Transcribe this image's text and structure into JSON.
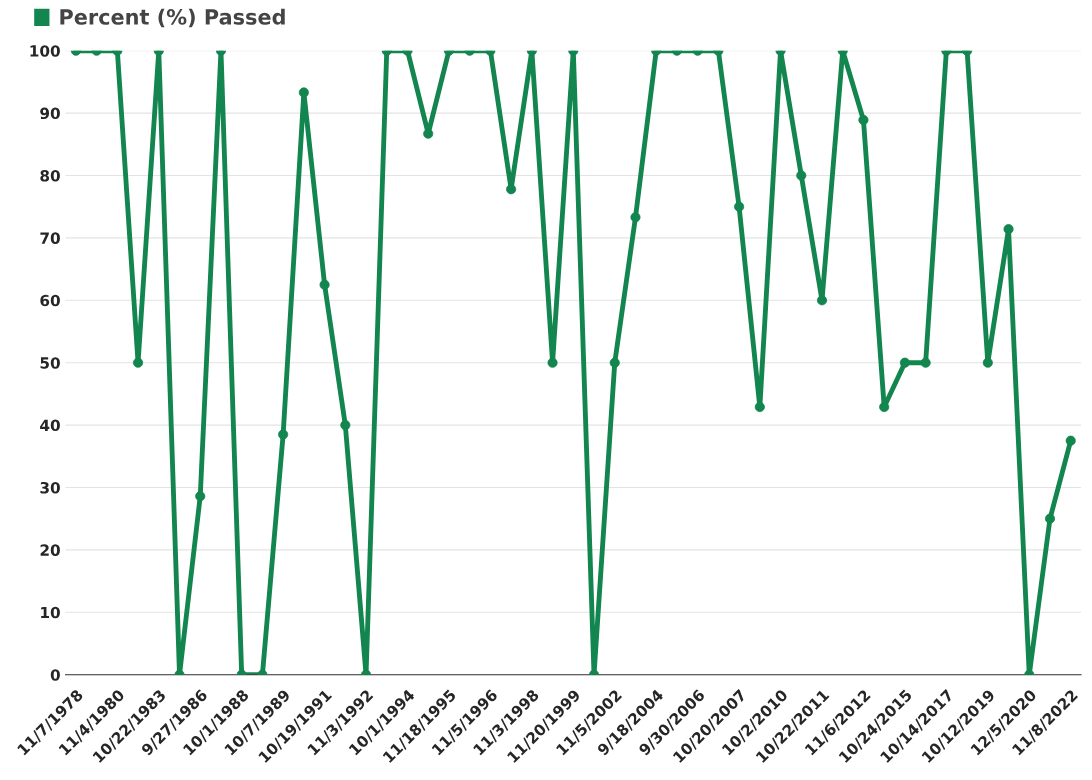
{
  "chart_data": {
    "type": "line",
    "categories": [
      "11/7/1978",
      null,
      "11/4/1980",
      null,
      "10/22/1983",
      null,
      "9/27/1986",
      null,
      "10/1/1988",
      null,
      "10/7/1989",
      null,
      "10/19/1991",
      null,
      "11/3/1992",
      null,
      "10/1/1994",
      null,
      "11/18/1995",
      null,
      "11/5/1996",
      null,
      "11/3/1998",
      null,
      "11/20/1999",
      null,
      "11/5/2002",
      null,
      "9/18/2004",
      null,
      "9/30/2006",
      null,
      "10/20/2007",
      null,
      "10/2/2010",
      null,
      "10/22/2011",
      null,
      "11/6/2012",
      null,
      "10/24/2015",
      null,
      "10/14/2017",
      null,
      "10/12/2019",
      null,
      "12/5/2020",
      null,
      "11/8/2022"
    ],
    "series": [
      {
        "name": "Percent (%) Passed",
        "color": "#13864f",
        "values": [
          100,
          100,
          100,
          50,
          100,
          0,
          28.6,
          100,
          0,
          0,
          38.5,
          93.3,
          62.5,
          40,
          0,
          100,
          100,
          86.7,
          100,
          100,
          100,
          77.8,
          100,
          50,
          100,
          0,
          50,
          73.3,
          100,
          100,
          100,
          100,
          75,
          42.9,
          100,
          80,
          60,
          100,
          88.9,
          42.9,
          50,
          50,
          100,
          100,
          50,
          71.4,
          0,
          25,
          37.5
        ]
      }
    ],
    "ylim": [
      0,
      100
    ],
    "yticks": [
      0,
      10,
      20,
      30,
      40,
      50,
      60,
      70,
      80,
      90,
      100
    ],
    "grid": "y",
    "legend": "top left",
    "marker": "circle",
    "line_style": "solid"
  }
}
